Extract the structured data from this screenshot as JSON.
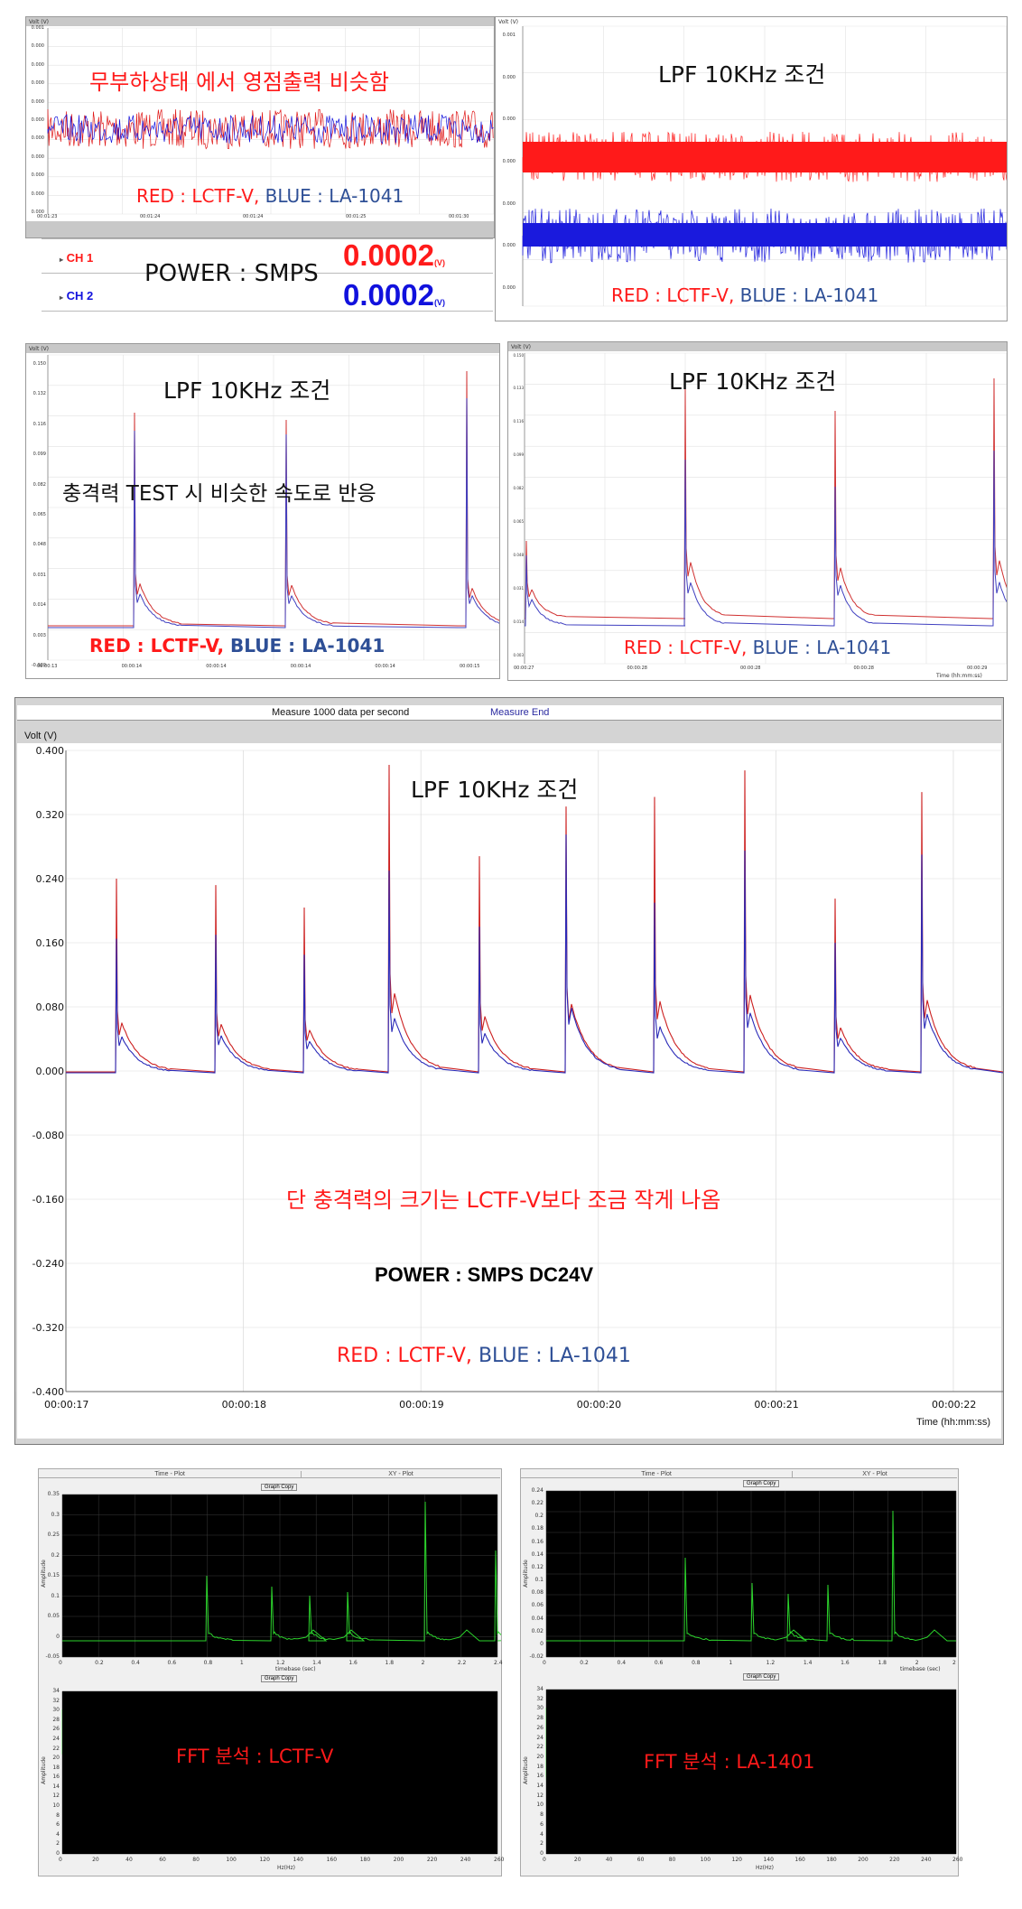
{
  "panel1": {
    "ylabel": "Volt (V)",
    "title": "무부하상태 에서 영점출력 비슷함",
    "legend_red": "RED : LCTF-V,",
    "legend_blue": "BLUE : LA-1041",
    "yticks": [
      "0.001",
      "0.000",
      "0.000",
      "0.000",
      "0.000",
      "0.000",
      "0.000",
      "0.000",
      "0.000",
      "0.000",
      "0.000"
    ],
    "xticks": [
      "00:01:23",
      "00:01:24",
      "00:01:24",
      "00:01:25",
      "00:01:30"
    ]
  },
  "readout": {
    "ch1_label": "CH 1",
    "ch2_label": "CH 2",
    "power": "POWER : SMPS",
    "ch1_value": "0.0002",
    "ch2_value": "0.0002",
    "unit": "(V)"
  },
  "panel2": {
    "ylabel": "Volt (V)",
    "title": "LPF  10KHz 조건",
    "legend_red": "RED : LCTF-V,",
    "legend_blue": "BLUE : LA-1041",
    "yticks": [
      "0.001",
      "0.000",
      "0.000",
      "0.000",
      "0.000",
      "0.000",
      "0.000"
    ]
  },
  "panel3": {
    "ylabel": "Volt (V)",
    "title": "LPF  10KHz 조건",
    "subtitle": "충격력 TEST 시 비슷한 속도로 반응",
    "legend_red": "RED : LCTF-V,",
    "legend_blue": "BLUE : LA-1041",
    "yticks": [
      "0.150",
      "0.132",
      "0.116",
      "0.099",
      "0.082",
      "0.065",
      "0.048",
      "0.031",
      "0.014",
      "0.003",
      "-0.020"
    ],
    "xticks": [
      "00:00:13",
      "00:00:14",
      "00:00:14",
      "00:00:14",
      "00:00:14",
      "00:00:15"
    ]
  },
  "panel4": {
    "ylabel": "Volt (V)",
    "title": "LPF  10KHz 조건",
    "legend_red": "RED : LCTF-V,",
    "legend_blue": "BLUE : LA-1041",
    "yticks": [
      "0.150",
      "0.133",
      "0.116",
      "0.099",
      "0.082",
      "0.065",
      "0.048",
      "0.031",
      "0.014",
      "0.003"
    ],
    "xticks": [
      "00:00:27",
      "00:00:28",
      "00:00:28",
      "00:00:28",
      "00:00:29"
    ],
    "xlabel": "Time (hh:mm:ss)"
  },
  "main": {
    "header_left": "Measure 1000 data per second",
    "header_right": "Measure End",
    "ylabel": "Volt (V)",
    "xlabel": "Time (hh:mm:ss)",
    "title": "LPF  10KHz 조건",
    "note": "단 충격력의 크기는 LCTF-V보다 조금 작게 나옴",
    "power": "POWER : SMPS DC24V",
    "legend_red": "RED : LCTF-V,",
    "legend_blue": "BLUE : LA-1041",
    "yticks": [
      "0.400",
      "0.320",
      "0.240",
      "0.160",
      "0.080",
      "0.000",
      "-0.080",
      "-0.160",
      "-0.240",
      "-0.320",
      "-0.400"
    ],
    "xticks": [
      "00:00:17",
      "00:00:18",
      "00:00:19",
      "00:00:20",
      "00:00:21",
      "00:00:22"
    ]
  },
  "fft_left": {
    "tab_time": "Time - Plot",
    "tab_xy": "XY - Plot",
    "graph_copy": "Graph Copy",
    "time_ylabel": "Amplitude",
    "time_xlabel": "timebase (sec)",
    "time_yticks": [
      "0.35",
      "0.3",
      "0.25",
      "0.2",
      "0.15",
      "0.1",
      "0.05",
      "0",
      "-0.05"
    ],
    "time_xticks": [
      "0",
      "0.2",
      "0.4",
      "0.6",
      "0.8",
      "1",
      "1.2",
      "1.4",
      "1.6",
      "1.8",
      "2",
      "2.2",
      "2.4"
    ],
    "fft_ylabel": "Amplitude",
    "fft_xlabel": "Hz(Hz)",
    "fft_yticks": [
      "34",
      "32",
      "30",
      "28",
      "26",
      "24",
      "22",
      "20",
      "18",
      "16",
      "14",
      "12",
      "10",
      "8",
      "6",
      "4",
      "2",
      "0"
    ],
    "fft_xticks": [
      "0",
      "20",
      "40",
      "60",
      "80",
      "100",
      "120",
      "140",
      "160",
      "180",
      "200",
      "220",
      "240",
      "260"
    ],
    "label": "FFT 분석 : LCTF-V"
  },
  "fft_right": {
    "tab_time": "Time - Plot",
    "tab_xy": "XY - Plot",
    "graph_copy": "Graph Copy",
    "time_ylabel": "Amplitude",
    "time_xlabel": "timebase (sec)",
    "time_yticks": [
      "0.24",
      "0.22",
      "0.2",
      "0.18",
      "0.16",
      "0.14",
      "0.12",
      "0.1",
      "0.08",
      "0.06",
      "0.04",
      "0.02",
      "0",
      "-0.02"
    ],
    "time_xticks": [
      "0",
      "0.2",
      "0.4",
      "0.6",
      "0.8",
      "1",
      "1.2",
      "1.4",
      "1.6",
      "1.8",
      "2",
      "2"
    ],
    "fft_ylabel": "Amplitude",
    "fft_xlabel": "Hz(Hz)",
    "fft_yticks": [
      "34",
      "32",
      "30",
      "28",
      "26",
      "24",
      "22",
      "20",
      "18",
      "16",
      "14",
      "12",
      "10",
      "8",
      "6",
      "4",
      "2",
      "0"
    ],
    "fft_xticks": [
      "0",
      "20",
      "40",
      "60",
      "80",
      "100",
      "120",
      "140",
      "160",
      "180",
      "200",
      "220",
      "240",
      "260"
    ],
    "label": "FFT 분석 : LA-1401"
  },
  "chart_data": [
    {
      "type": "line",
      "title": "무부하상태 에서 영점출력 비슷함",
      "ylabel": "Volt (V)",
      "series": [
        {
          "name": "RED : LCTF-V"
        },
        {
          "name": "BLUE : LA-1041"
        }
      ],
      "ch1_reading": 0.0002,
      "ch2_reading": 0.0002
    },
    {
      "type": "line",
      "title": "LPF  10KHz 조건",
      "ylabel": "Volt (V)",
      "xlabel": "Time (hh:mm:ss)",
      "ylim": [
        -0.4,
        0.4
      ],
      "x": [
        "00:00:17.3",
        "00:00:17.8",
        "00:00:18.3",
        "00:00:18.8",
        "00:00:19.3",
        "00:00:19.8",
        "00:00:20.3",
        "00:00:20.8",
        "00:00:21.3",
        "00:00:21.8"
      ],
      "series": [
        {
          "name": "RED : LCTF-V",
          "values": [
            0.24,
            0.232,
            0.204,
            0.382,
            0.268,
            0.33,
            0.342,
            0.375,
            0.215,
            0.348
          ]
        },
        {
          "name": "BLUE : LA-1041",
          "values": [
            0.165,
            0.17,
            0.145,
            0.25,
            0.18,
            0.295,
            0.21,
            0.275,
            0.16,
            0.27
          ]
        }
      ]
    }
  ]
}
